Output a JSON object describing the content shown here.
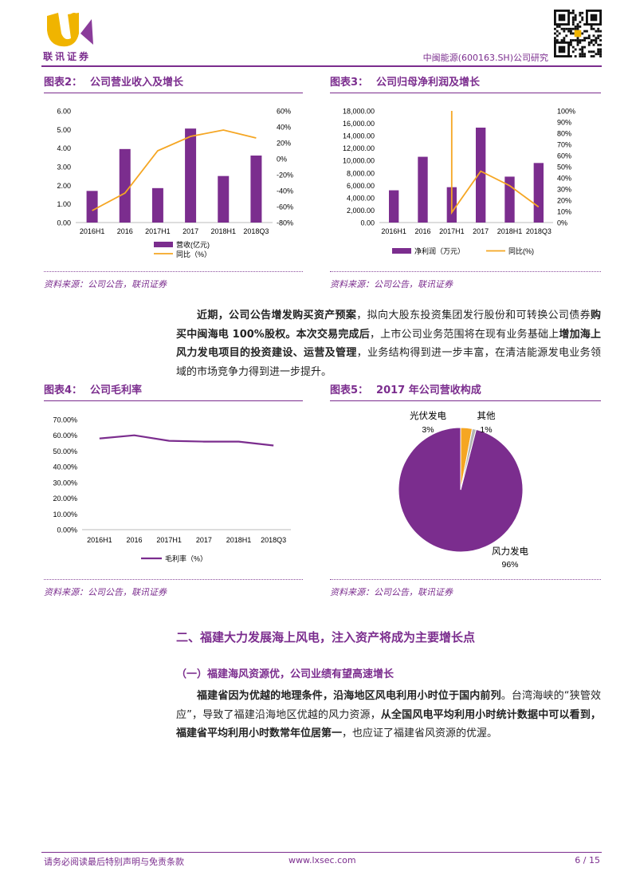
{
  "header": {
    "logo_text": "联讯证券",
    "report_label": "中闽能源(600163.SH)公司研究"
  },
  "fig2": {
    "title_num": "图表2：",
    "title_text": "公司营业收入及增长",
    "legend": [
      "营收(亿元)",
      "同比（%）"
    ],
    "source": "资料来源：公司公告，联讯证券"
  },
  "fig3": {
    "title_num": "图表3：",
    "title_text": "公司归母净利润及增长",
    "legend": [
      "净利润（万元）",
      "同比(%)"
    ],
    "source": "资料来源：公司公告，联讯证券"
  },
  "para1": {
    "s1": "近期，公司公告增发购买资产预案",
    "s2": "，拟向大股东投资集团发行股份和可转换公司债券",
    "s3": "购买中闽海电 100%股权。本次交易完成后",
    "s4": "，上市公司业务范围将在现有业务基础上",
    "s5": "增加海上风力发电项目的投资建设、运营及管理",
    "s6": "，业务结构得到进一步丰富，在清洁能源发电业务领域的市场竞争力得到进一步提升。"
  },
  "fig4": {
    "title_num": "图表4：",
    "title_text": "公司毛利率",
    "legend": [
      "毛利率（%）"
    ],
    "source": "资料来源：公司公告，联讯证券"
  },
  "fig5": {
    "title_num": "图表5：",
    "title_text": "2017 年公司营收构成",
    "source": "资料来源：公司公告，联讯证券"
  },
  "section": {
    "heading": "二、福建大力发展海上风电，注入资产将成为主要增长点",
    "subheading": "（一）福建海风资源优，公司业绩有望高速增长"
  },
  "para2": {
    "s1": "福建省因为优越的地理条件，沿海地区风电利用小时位于国内前列",
    "s2": "。台湾海峡的“狭管效应”，导致了福建沿海地区优越的风力资源，",
    "s3": "从全国风电平均利用小时统计数据中可以看到，福建省平均利用小时数常年位居第一",
    "s4": "，也应证了福建省风资源的优渥。"
  },
  "footer": {
    "disclaimer": "请务必阅读最后特别声明与免责条款",
    "website": "www.lxsec.com",
    "page": "6 / 15"
  },
  "colors": {
    "purple": "#7b2d8e",
    "orange": "#f5a623",
    "grey": "#b3b3b3"
  },
  "chart_data": [
    {
      "id": "fig2",
      "type": "bar",
      "categories": [
        "2016H1",
        "2016",
        "2017H1",
        "2017",
        "2018H1",
        "2018Q3"
      ],
      "series": [
        {
          "name": "营收(亿元)",
          "kind": "bar",
          "axis": "left",
          "values": [
            1.7,
            3.95,
            1.85,
            5.05,
            2.5,
            3.6
          ]
        },
        {
          "name": "同比（%）",
          "kind": "line",
          "axis": "right",
          "values": [
            -65,
            -43,
            10,
            28,
            36,
            26
          ]
        }
      ],
      "ylim": [
        0,
        6
      ],
      "yticks": [
        0,
        1,
        2,
        3,
        4,
        5,
        6
      ],
      "yfmt": "0.00",
      "y2lim": [
        -80,
        60
      ],
      "y2ticks": [
        -80,
        -60,
        -40,
        -20,
        0,
        20,
        40,
        60
      ],
      "y2fmt": "%"
    },
    {
      "id": "fig3",
      "type": "bar",
      "categories": [
        "2016H1",
        "2016",
        "2017H1",
        "2017",
        "2018H1",
        "2018Q3"
      ],
      "series": [
        {
          "name": "净利润（万元）",
          "kind": "bar",
          "axis": "left",
          "values": [
            5200,
            10600,
            5700,
            15300,
            7400,
            9600
          ]
        },
        {
          "name": "同比(%)",
          "kind": "line",
          "axis": "right",
          "x": [
            2.0,
            2.0,
            3.0,
            4.0,
            5.0
          ],
          "values": [
            100,
            9,
            46,
            33,
            14
          ]
        }
      ],
      "ylim": [
        0,
        18000
      ],
      "yticks": [
        0,
        2000,
        4000,
        6000,
        8000,
        10000,
        12000,
        14000,
        16000,
        18000
      ],
      "yfmt": "0,000.00",
      "y2lim": [
        0,
        100
      ],
      "y2ticks": [
        0,
        10,
        20,
        30,
        40,
        50,
        60,
        70,
        80,
        90,
        100
      ],
      "y2fmt": "%"
    },
    {
      "id": "fig4",
      "type": "line",
      "categories": [
        "2016H1",
        "2016",
        "2017H1",
        "2017",
        "2018H1",
        "2018Q3"
      ],
      "series": [
        {
          "name": "毛利率（%）",
          "values": [
            58.0,
            60.0,
            56.5,
            56.0,
            56.0,
            53.5
          ]
        }
      ],
      "ylim": [
        0,
        70
      ],
      "yticks": [
        0,
        10,
        20,
        30,
        40,
        50,
        60,
        70
      ],
      "yfmt": "0.00%"
    },
    {
      "id": "fig5",
      "type": "pie",
      "slices": [
        {
          "label": "风力发电",
          "pct": "96%",
          "value": 96
        },
        {
          "label": "光伏发电",
          "pct": "3%",
          "value": 3
        },
        {
          "label": "其他",
          "pct": "1%",
          "value": 1
        }
      ]
    }
  ]
}
